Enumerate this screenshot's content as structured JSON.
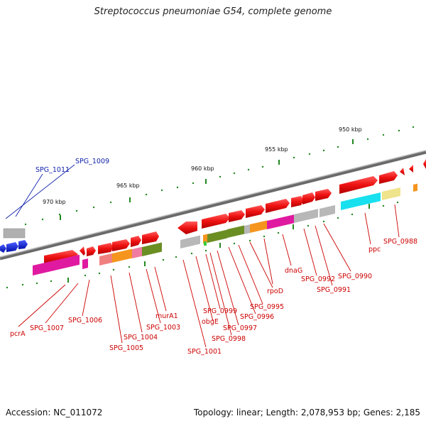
{
  "title": "Streptococcus pneumoniae G54, complete genome",
  "footer": {
    "accession": "Accession: NC_011072",
    "summary": "Topology: linear; Length: 2,078,953 bp; Genes: 2,185"
  },
  "ruler_labels": [
    "950 kbp",
    "955 kbp",
    "960 kbp",
    "965 kbp",
    "970 kbp"
  ],
  "gene_labels": [
    "SPG_1009",
    "SPG_1011",
    "pcrA",
    "SPG_1007",
    "SPG_1006",
    "SPG_1005",
    "SPG_1004",
    "SPG_1003",
    "murA1",
    "SPG_1001",
    "obgE",
    "SPG_0999",
    "SPG_0998",
    "SPG_0997",
    "SPG_0996",
    "SPG_0995",
    "rpoD",
    "dnaG",
    "SPG_0992",
    "SPG_0991",
    "SPG_0990",
    "ppc",
    "SPG_0988"
  ],
  "colors": {
    "gene_arrow": "#ee1111",
    "gene_arrow_other_strand": "#1122cc",
    "backbone": "#777777",
    "label_red": "#cc0000",
    "label_blue": "#1122aa",
    "tick": "#228822"
  }
}
